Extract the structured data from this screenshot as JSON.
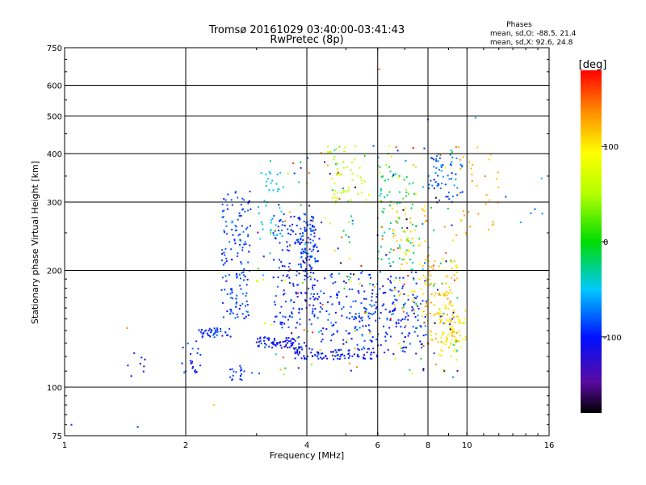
{
  "chart_data": {
    "type": "scatter",
    "title": "Tromsø 20161029 03:40:00-03:41:43",
    "subtitle": "RwPretec (8p)",
    "xlabel": "Frequency [MHz]",
    "ylabel": "Stationary phase Virtual Height [km]",
    "x_scale": "log",
    "y_scale": "log",
    "xlim": [
      1,
      16
    ],
    "ylim": [
      75,
      750
    ],
    "x_ticks": [
      1,
      2,
      4,
      6,
      8,
      10,
      16
    ],
    "y_ticks": [
      75,
      100,
      200,
      300,
      400,
      500,
      600,
      750
    ],
    "x_gridlines": [
      2,
      4,
      6,
      8,
      10
    ],
    "y_gridlines": [
      100,
      200,
      300,
      400,
      500,
      600
    ],
    "grid": true,
    "stats": {
      "title": "Phases",
      "line_o": "mean, sd,O: -88.5, 21.4",
      "line_x": "mean, sd,X:  92.6, 24.8"
    },
    "colorbar": {
      "label": "[deg]",
      "ticks": [
        100,
        0,
        -100
      ],
      "tick_labels": [
        "100",
        "0",
        "-100"
      ],
      "range": [
        -180,
        180
      ]
    },
    "clusters": [
      {
        "f": [
          1.42,
          1.6
        ],
        "h": [
          106,
          124
        ],
        "n": 8,
        "phase": -110
      },
      {
        "f": [
          1.95,
          2.18
        ],
        "h": [
          104,
          132
        ],
        "n": 22,
        "phase": -95
      },
      {
        "f": [
          2.15,
          2.6
        ],
        "h": [
          134,
          142
        ],
        "n": 40,
        "phase": -90
      },
      {
        "f": [
          2.45,
          2.9
        ],
        "h": [
          150,
          320
        ],
        "n": 150,
        "phase": -88
      },
      {
        "f": [
          2.55,
          2.95
        ],
        "h": [
          104,
          114
        ],
        "n": 18,
        "phase": -90
      },
      {
        "f": [
          3.0,
          3.5
        ],
        "h": [
          240,
          360
        ],
        "n": 40,
        "phase": -50
      },
      {
        "f": [
          3.0,
          4.0
        ],
        "h": [
          126,
          135
        ],
        "n": 70,
        "phase": -105
      },
      {
        "f": [
          3.3,
          4.3
        ],
        "h": [
          140,
          280
        ],
        "n": 180,
        "phase": -95
      },
      {
        "f": [
          3.8,
          4.2
        ],
        "h": [
          200,
          280
        ],
        "n": 60,
        "phase": -85
      },
      {
        "f": [
          3.7,
          6.0
        ],
        "h": [
          118,
          126
        ],
        "n": 90,
        "phase": -100
      },
      {
        "f": [
          4.3,
          6.0
        ],
        "h": [
          130,
          200
        ],
        "n": 130,
        "phase": -90
      },
      {
        "f": [
          4.5,
          5.5
        ],
        "h": [
          300,
          420
        ],
        "n": 50,
        "phase": 60
      },
      {
        "f": [
          6.0,
          8.0
        ],
        "h": [
          120,
          200
        ],
        "n": 120,
        "phase": -95
      },
      {
        "f": [
          6.0,
          7.5
        ],
        "h": [
          200,
          380
        ],
        "n": 70,
        "phase": -20
      },
      {
        "f": [
          6.5,
          8.0
        ],
        "h": [
          150,
          300
        ],
        "n": 70,
        "phase": 110
      },
      {
        "f": [
          7.8,
          9.5
        ],
        "h": [
          130,
          220
        ],
        "n": 110,
        "phase": 115
      },
      {
        "f": [
          8.0,
          9.8
        ],
        "h": [
          300,
          400
        ],
        "n": 60,
        "phase": -80
      },
      {
        "f": [
          8.5,
          10.0
        ],
        "h": [
          120,
          160
        ],
        "n": 60,
        "phase": 100
      },
      {
        "f": [
          9.5,
          12.0
        ],
        "h": [
          240,
          420
        ],
        "n": 35,
        "phase": 120
      },
      {
        "f": [
          12.0,
          15.5
        ],
        "h": [
          260,
          360
        ],
        "n": 6,
        "phase": -70
      },
      {
        "f": [
          3.0,
          9.5
        ],
        "h": [
          105,
          420
        ],
        "n": 260,
        "phase": 40
      }
    ],
    "outliers": [
      {
        "f": 1.04,
        "h": 80,
        "phase": -100
      },
      {
        "f": 1.43,
        "h": 142,
        "phase": 140
      },
      {
        "f": 1.52,
        "h": 79,
        "phase": -90
      },
      {
        "f": 6.05,
        "h": 660,
        "phase": 150
      },
      {
        "f": 8.0,
        "h": 490,
        "phase": -80
      },
      {
        "f": 10.5,
        "h": 495,
        "phase": -60
      },
      {
        "f": 2.35,
        "h": 90,
        "phase": 110
      }
    ]
  }
}
